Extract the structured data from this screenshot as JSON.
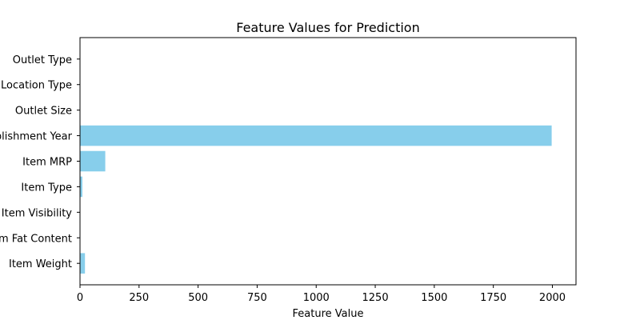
{
  "chart_data": {
    "type": "bar",
    "orientation": "horizontal",
    "title": "Feature Values for Prediction",
    "xlabel": "Feature Value",
    "ylabel": "",
    "categories": [
      "Item Weight",
      "Item Fat Content",
      "Item Visibility",
      "Item Type",
      "Item MRP",
      "Outlet Establishment Year",
      "Outlet Size",
      "Outlet Location Type",
      "Outlet Type"
    ],
    "values": [
      21,
      0,
      0.02,
      10,
      107,
      1997,
      1,
      1,
      1
    ],
    "xlim": [
      0,
      2100
    ],
    "xticks": [
      0,
      250,
      500,
      750,
      1000,
      1250,
      1500,
      1750,
      2000
    ],
    "xtick_labels": [
      "0",
      "250",
      "500",
      "750",
      "1000",
      "1250",
      "1500",
      "1750",
      "2000"
    ],
    "bar_color": "#87CEEB",
    "grid": false,
    "legend": "none"
  }
}
